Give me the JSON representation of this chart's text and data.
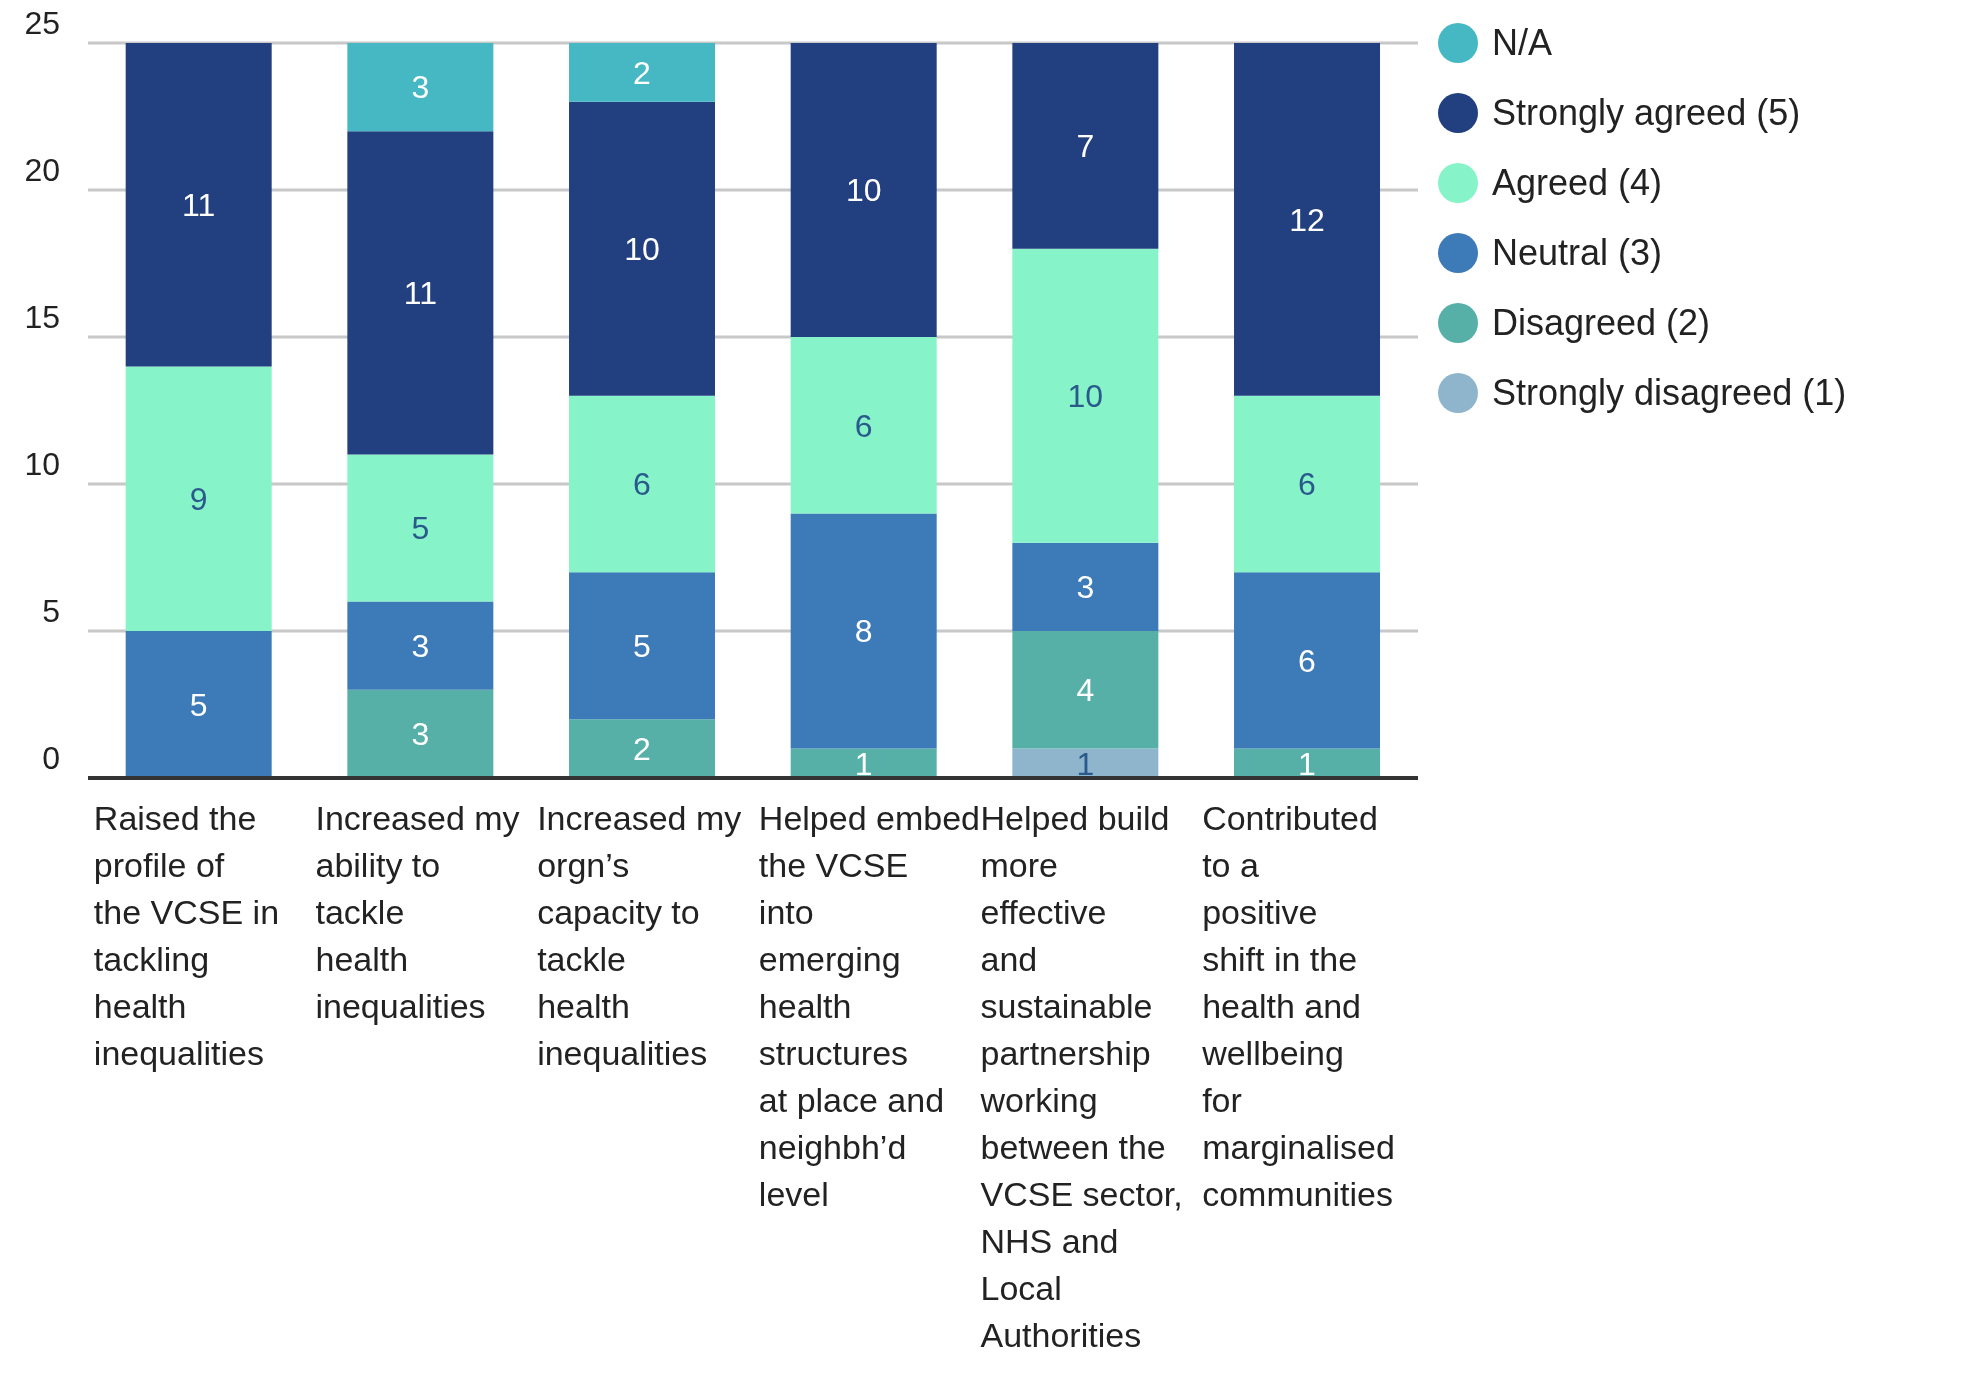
{
  "chart_data": {
    "type": "bar",
    "stacked": true,
    "categories": [
      "Raised the profile of the VCSE in tackling health inequalities",
      "Increased my ability to tackle health inequalities",
      "Increased my orgn’s capacity to tackle health inequalities",
      "Helped embed the VCSE into emerging health structures at place and neighbh’d level",
      "Helped build more effective and sustainable partnership working between the VCSE sector, NHS and Local Authorities",
      "Contributed to a positive shift in the health and wellbeing for marginalised communities"
    ],
    "series": [
      {
        "name": "Strongly disagreed (1)",
        "color": "#8fb5cc",
        "values": [
          null,
          null,
          null,
          null,
          1,
          null
        ]
      },
      {
        "name": "Disagreed (2)",
        "color": "#56b0a8",
        "values": [
          null,
          3,
          2,
          1,
          4,
          1
        ]
      },
      {
        "name": "Neutral (3)",
        "color": "#3d7ab8",
        "values": [
          5,
          3,
          5,
          8,
          3,
          6
        ]
      },
      {
        "name": "Agreed (4)",
        "color": "#86f4c8",
        "values": [
          9,
          5,
          6,
          6,
          10,
          6
        ]
      },
      {
        "name": "Strongly agreed (5)",
        "color": "#223f80",
        "values": [
          11,
          11,
          10,
          10,
          7,
          12
        ]
      },
      {
        "name": "N/A",
        "color": "#45b8c4",
        "values": [
          null,
          3,
          2,
          null,
          null,
          null
        ]
      }
    ],
    "ylim": [
      0,
      25
    ],
    "yticks": [
      0,
      5,
      10,
      15,
      20,
      25
    ],
    "grid": "y",
    "legend": "top right",
    "data_labels": true
  }
}
